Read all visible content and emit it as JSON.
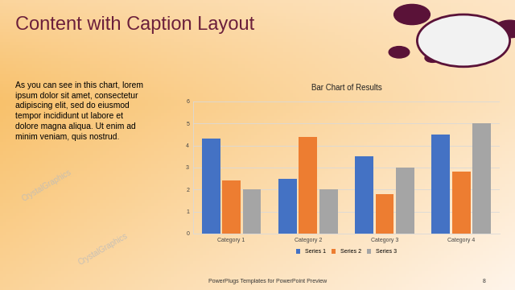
{
  "slide": {
    "title": "Content with Caption Layout",
    "caption": "As you can see in this chart, lorem ipsum dolor sit amet, consectetur adipiscing elit, sed do eiusmod tempor incididunt ut labore et dolore magna aliqua. Ut enim ad minim veniam, quis nostrud.",
    "footer": "PowerPlugs Templates for PowerPoint Preview",
    "page": 8,
    "watermark": "CrystalGraphics"
  },
  "chart_data": {
    "type": "bar",
    "title": "Bar Chart of Results",
    "categories": [
      "Category 1",
      "Category 2",
      "Category 3",
      "Category 4"
    ],
    "series": [
      {
        "name": "Series 1",
        "color": "#4472c4",
        "values": [
          4.3,
          2.5,
          3.5,
          4.5
        ]
      },
      {
        "name": "Series 2",
        "color": "#ed7d31",
        "values": [
          2.4,
          4.4,
          1.8,
          2.8
        ]
      },
      {
        "name": "Series 3",
        "color": "#a5a5a5",
        "values": [
          2,
          2,
          3,
          5
        ]
      }
    ],
    "ylim": [
      0,
      6
    ],
    "yticks": [
      0,
      1,
      2,
      3,
      4,
      5,
      6
    ],
    "grid": true,
    "legend": "lower center"
  }
}
